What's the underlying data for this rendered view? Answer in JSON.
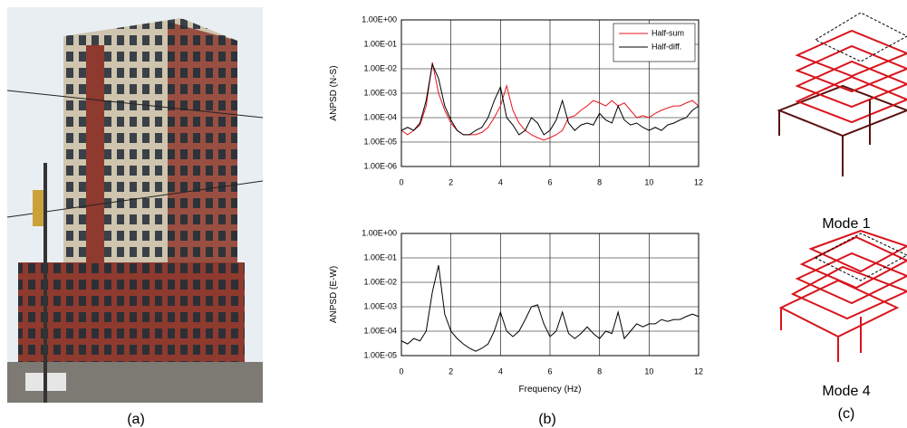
{
  "chart_data": [
    {
      "type": "line",
      "y_label": "ANPSD (N-S)",
      "x": [
        0,
        0.25,
        0.5,
        0.75,
        1,
        1.25,
        1.5,
        1.75,
        2,
        2.25,
        2.5,
        2.75,
        3,
        3.25,
        3.5,
        3.75,
        4,
        4.25,
        4.5,
        4.75,
        5,
        5.25,
        5.5,
        5.75,
        6,
        6.25,
        6.5,
        6.75,
        7,
        7.25,
        7.5,
        7.75,
        8,
        8.25,
        8.5,
        8.75,
        9,
        9.25,
        9.5,
        9.75,
        10,
        10.25,
        10.5,
        10.75,
        11,
        11.25,
        11.5,
        11.75,
        12
      ],
      "series": [
        {
          "name": "Half-sum",
          "color": "#e8141c",
          "values": [
            3e-05,
            2e-05,
            3e-05,
            5e-05,
            0.0003,
            0.018,
            0.001,
            0.0002,
            6e-05,
            3e-05,
            2e-05,
            2e-05,
            2e-05,
            2.5e-05,
            4e-05,
            0.0001,
            0.0003,
            0.002,
            0.0002,
            6e-05,
            3e-05,
            2e-05,
            1.5e-05,
            1.2e-05,
            1.5e-05,
            2e-05,
            3e-05,
            0.0001,
            0.00012,
            0.0002,
            0.0003,
            0.0005,
            0.0004,
            0.0003,
            0.0005,
            0.0003,
            0.0004,
            0.0002,
            0.0001,
            0.00012,
            0.0001,
            0.00015,
            0.0002,
            0.00025,
            0.0003,
            0.0003,
            0.0004,
            0.0005,
            0.0003
          ]
        },
        {
          "name": "Half-diff.",
          "color": "#000000",
          "values": [
            3e-05,
            4e-05,
            3e-05,
            6e-05,
            0.0005,
            0.015,
            0.004,
            0.0003,
            8e-05,
            3e-05,
            2e-05,
            2e-05,
            3e-05,
            4e-05,
            0.0001,
            0.0005,
            0.0018,
            0.0001,
            5e-05,
            2e-05,
            3e-05,
            0.0001,
            6e-05,
            2e-05,
            3e-05,
            8e-05,
            0.0005,
            6e-05,
            3e-05,
            5e-05,
            6e-05,
            5e-05,
            0.00015,
            8e-05,
            6e-05,
            0.0003,
            8e-05,
            5e-05,
            6e-05,
            4e-05,
            3e-05,
            4e-05,
            3e-05,
            5e-05,
            6e-05,
            8e-05,
            0.0001,
            0.0002,
            0.0003
          ]
        }
      ],
      "xlim": [
        0,
        12
      ],
      "xticks": [
        0,
        2,
        4,
        6,
        8,
        10,
        12
      ],
      "ylim": [
        1e-06,
        1
      ],
      "yscale": "log",
      "yticks": [
        {
          "value": 1e-06,
          "label": "1.00E-06"
        },
        {
          "value": 1e-05,
          "label": "1.00E-05"
        },
        {
          "value": 0.0001,
          "label": "1.00E-04"
        },
        {
          "value": 0.001,
          "label": "1.00E-03"
        },
        {
          "value": 0.01,
          "label": "1.00E-02"
        },
        {
          "value": 0.1,
          "label": "1.00E-01"
        },
        {
          "value": 1,
          "label": "1.00E+00"
        }
      ],
      "grid": true,
      "legend": "upper right"
    },
    {
      "type": "line",
      "y_label": "ANPSD (E-W)",
      "x_label": "Frequency (Hz)",
      "x": [
        0,
        0.25,
        0.5,
        0.75,
        1,
        1.25,
        1.5,
        1.75,
        2,
        2.25,
        2.5,
        2.75,
        3,
        3.25,
        3.5,
        3.75,
        4,
        4.25,
        4.5,
        4.75,
        5,
        5.25,
        5.5,
        5.75,
        6,
        6.25,
        6.5,
        6.75,
        7,
        7.25,
        7.5,
        7.75,
        8,
        8.25,
        8.5,
        8.75,
        9,
        9.25,
        9.5,
        9.75,
        10,
        10.25,
        10.5,
        10.75,
        11,
        11.25,
        11.5,
        11.75,
        12
      ],
      "series": [
        {
          "color": "#000000",
          "values": [
            4e-05,
            3e-05,
            5e-05,
            4e-05,
            0.0001,
            0.004,
            0.05,
            0.0005,
            0.0001,
            5e-05,
            3e-05,
            2e-05,
            1.5e-05,
            2e-05,
            3e-05,
            0.0001,
            0.0006,
            0.0001,
            6e-05,
            0.0001,
            0.0003,
            0.001,
            0.0012,
            0.0002,
            6e-05,
            0.0001,
            0.0006,
            8e-05,
            5e-05,
            8e-05,
            0.00015,
            8e-05,
            5e-05,
            0.0001,
            8e-05,
            0.0006,
            5e-05,
            0.0001,
            0.0002,
            0.00015,
            0.0002,
            0.0002,
            0.0003,
            0.00025,
            0.0003,
            0.0003,
            0.0004,
            0.0005,
            0.0004
          ]
        }
      ],
      "xlim": [
        0,
        12
      ],
      "xticks": [
        0,
        2,
        4,
        6,
        8,
        10,
        12
      ],
      "ylim": [
        1e-05,
        1
      ],
      "yscale": "log",
      "yticks": [
        {
          "value": 1e-05,
          "label": "1.00E-05"
        },
        {
          "value": 0.0001,
          "label": "1.00E-04"
        },
        {
          "value": 0.001,
          "label": "1.00E-03"
        },
        {
          "value": 0.01,
          "label": "1.00E-02"
        },
        {
          "value": 0.1,
          "label": "1.00E-01"
        },
        {
          "value": 1,
          "label": "1.00E+00"
        }
      ],
      "grid": true
    }
  ],
  "panels": {
    "a": "(a)",
    "b": "(b)",
    "c": "(c)"
  },
  "modes": [
    "Mode 1",
    "Mode 4"
  ]
}
